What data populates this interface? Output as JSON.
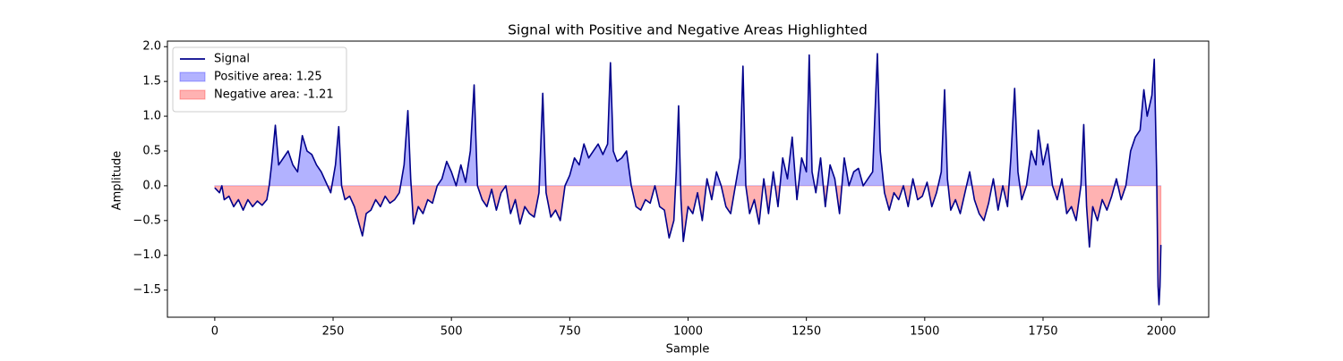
{
  "chart_data": {
    "type": "line",
    "title": "Signal with Positive and Negative Areas Highlighted",
    "xlabel": "Sample",
    "ylabel": "Amplitude",
    "x": [
      0,
      10,
      15,
      20,
      30,
      40,
      50,
      60,
      70,
      80,
      90,
      100,
      110,
      115,
      120,
      128,
      135,
      145,
      155,
      165,
      175,
      185,
      195,
      205,
      215,
      225,
      235,
      245,
      255,
      262,
      268,
      275,
      285,
      295,
      305,
      312,
      320,
      330,
      340,
      350,
      360,
      370,
      380,
      390,
      400,
      408,
      414,
      420,
      430,
      440,
      450,
      460,
      470,
      480,
      490,
      500,
      510,
      520,
      530,
      540,
      548,
      555,
      565,
      575,
      585,
      595,
      605,
      615,
      625,
      635,
      645,
      655,
      665,
      675,
      685,
      693,
      700,
      710,
      720,
      730,
      740,
      750,
      760,
      770,
      780,
      790,
      800,
      810,
      820,
      830,
      836,
      842,
      850,
      860,
      870,
      880,
      890,
      900,
      910,
      920,
      930,
      940,
      950,
      960,
      970,
      975,
      980,
      985,
      990,
      1000,
      1010,
      1020,
      1030,
      1040,
      1050,
      1060,
      1070,
      1080,
      1090,
      1100,
      1110,
      1116,
      1122,
      1130,
      1140,
      1150,
      1160,
      1170,
      1180,
      1190,
      1200,
      1210,
      1220,
      1230,
      1240,
      1250,
      1256,
      1262,
      1270,
      1280,
      1290,
      1300,
      1310,
      1320,
      1330,
      1340,
      1350,
      1360,
      1370,
      1380,
      1390,
      1400,
      1406,
      1415,
      1425,
      1435,
      1445,
      1455,
      1465,
      1475,
      1485,
      1495,
      1505,
      1515,
      1525,
      1535,
      1542,
      1548,
      1555,
      1565,
      1575,
      1585,
      1595,
      1605,
      1615,
      1625,
      1635,
      1645,
      1655,
      1665,
      1675,
      1682,
      1690,
      1697,
      1705,
      1715,
      1725,
      1735,
      1740,
      1750,
      1760,
      1770,
      1780,
      1790,
      1800,
      1810,
      1820,
      1830,
      1836,
      1842,
      1848,
      1855,
      1865,
      1875,
      1885,
      1895,
      1905,
      1915,
      1925,
      1935,
      1945,
      1955,
      1963,
      1970,
      1980,
      1985,
      1990,
      1993,
      1995,
      1997,
      1999
    ],
    "series": [
      {
        "name": "Signal",
        "color": "#00008b",
        "values": [
          -0.03,
          -0.1,
          0,
          -0.2,
          -0.15,
          -0.3,
          -0.2,
          -0.35,
          -0.2,
          -0.3,
          -0.22,
          -0.28,
          -0.2,
          0,
          0.3,
          0.87,
          0.3,
          0.4,
          0.5,
          0.3,
          0.2,
          0.72,
          0.5,
          0.45,
          0.3,
          0.2,
          0.05,
          -0.1,
          0.3,
          0.85,
          0,
          -0.2,
          -0.15,
          -0.3,
          -0.55,
          -0.72,
          -0.4,
          -0.35,
          -0.2,
          -0.3,
          -0.15,
          -0.25,
          -0.2,
          -0.1,
          0.3,
          1.08,
          0.1,
          -0.55,
          -0.3,
          -0.4,
          -0.2,
          -0.25,
          0,
          0.1,
          0.35,
          0.2,
          0,
          0.3,
          0.05,
          0.5,
          1.45,
          0,
          -0.2,
          -0.3,
          -0.05,
          -0.35,
          -0.1,
          0,
          -0.4,
          -0.2,
          -0.55,
          -0.3,
          -0.4,
          -0.45,
          -0.1,
          1.33,
          -0.1,
          -0.45,
          -0.35,
          -0.5,
          0,
          0.15,
          0.4,
          0.3,
          0.6,
          0.4,
          0.5,
          0.6,
          0.45,
          0.6,
          1.77,
          0.5,
          0.35,
          0.4,
          0.5,
          0,
          -0.3,
          -0.35,
          -0.2,
          -0.25,
          0,
          -0.3,
          -0.35,
          -0.75,
          -0.5,
          0.2,
          1.15,
          -0.2,
          -0.8,
          -0.3,
          -0.4,
          -0.1,
          -0.5,
          0.1,
          -0.2,
          0.2,
          0,
          -0.3,
          -0.4,
          0,
          0.4,
          1.72,
          0,
          -0.4,
          -0.2,
          -0.55,
          0.1,
          -0.4,
          0.2,
          -0.3,
          0.4,
          0.1,
          0.7,
          -0.2,
          0.4,
          0.2,
          1.88,
          0.2,
          -0.1,
          0.4,
          -0.3,
          0.3,
          0.1,
          -0.4,
          0.4,
          0,
          0.2,
          0.25,
          0,
          0.1,
          0.2,
          1.9,
          0.5,
          -0.1,
          -0.35,
          -0.1,
          -0.2,
          0,
          -0.3,
          0.1,
          -0.2,
          -0.15,
          0.05,
          -0.3,
          -0.1,
          0.2,
          1.38,
          0.1,
          -0.35,
          -0.2,
          -0.4,
          -0.1,
          0.2,
          -0.2,
          -0.4,
          -0.5,
          -0.25,
          0.1,
          -0.35,
          0,
          -0.3,
          0.4,
          1.4,
          0.2,
          -0.2,
          0,
          0.5,
          0.3,
          0.8,
          0.3,
          0.6,
          0,
          -0.2,
          0.1,
          -0.4,
          -0.3,
          -0.5,
          0,
          0.88,
          -0.3,
          -0.88,
          -0.3,
          -0.5,
          -0.2,
          -0.35,
          -0.15,
          0.1,
          -0.2,
          0,
          0.5,
          0.7,
          0.8,
          1.38,
          1.0,
          1.3,
          1.82,
          0.2,
          -1.45,
          -1.71,
          -1.45,
          -0.85
        ]
      }
    ],
    "areas": [
      {
        "name": "Positive area: 1.25",
        "color": "#0000ff"
      },
      {
        "name": "Negative area: -1.21",
        "color": "#ff0000"
      }
    ],
    "xlim": [
      -100,
      2100
    ],
    "xticks": [
      0,
      250,
      500,
      750,
      1000,
      1250,
      1500,
      1750,
      2000
    ],
    "ylim": [
      -1.89,
      2.08
    ],
    "yticks": [
      {
        "value": -1.5,
        "label": "−1.5"
      },
      {
        "value": -1.0,
        "label": "−1.0"
      },
      {
        "value": -0.5,
        "label": "−0.5"
      },
      {
        "value": 0,
        "label": "0.0"
      },
      0.5,
      {
        "value": 1,
        "label": "1.0"
      },
      1.5,
      {
        "value": 2,
        "label": "2.0"
      }
    ],
    "legend": "upper left"
  }
}
